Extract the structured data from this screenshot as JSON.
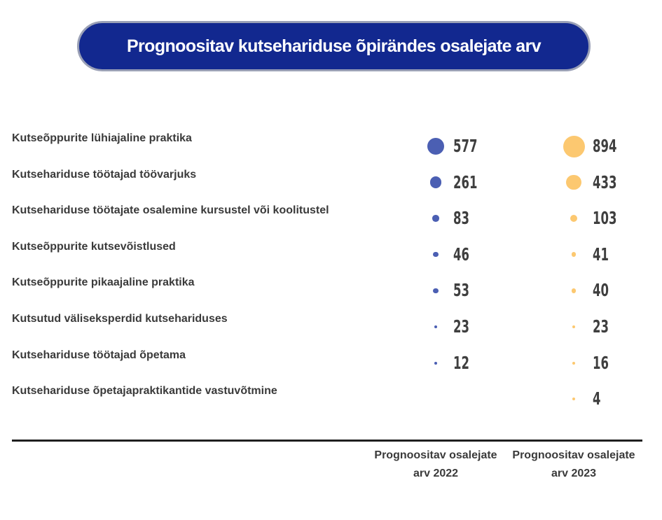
{
  "title": "Prognoositav kutsehariduse õpirändes osalejate arv",
  "colors": {
    "title_bg": "#12288f",
    "series_2022": "#4b5fb3",
    "series_2023": "#fcc870"
  },
  "chart_data": {
    "type": "bubble-table",
    "title": "Prognoositav kutsehariduse õpirändes osalejate arv",
    "categories": [
      "Kutseõppurite lühiajaline praktika",
      "Kutsehariduse töötajad töövarjuks",
      "Kutsehariduse töötajate osalemine kursustel või koolitustel",
      "Kutseõppurite kutsevõistlused",
      "Kutseõppurite pikaajaline praktika",
      "Kutsutud väliseksperdid kutsehariduses",
      "Kutsehariduse töötajad õpetama",
      "Kutsehariduse õpetajapraktikantide vastuvõtmine"
    ],
    "series": [
      {
        "name": "Prognoositav osalejate arv 2022",
        "color": "#4b5fb3",
        "values": [
          577,
          261,
          83,
          46,
          53,
          23,
          12,
          null
        ]
      },
      {
        "name": "Prognoositav osalejate arv 2023",
        "color": "#fcc870",
        "values": [
          894,
          433,
          103,
          41,
          40,
          23,
          16,
          4
        ]
      }
    ]
  }
}
